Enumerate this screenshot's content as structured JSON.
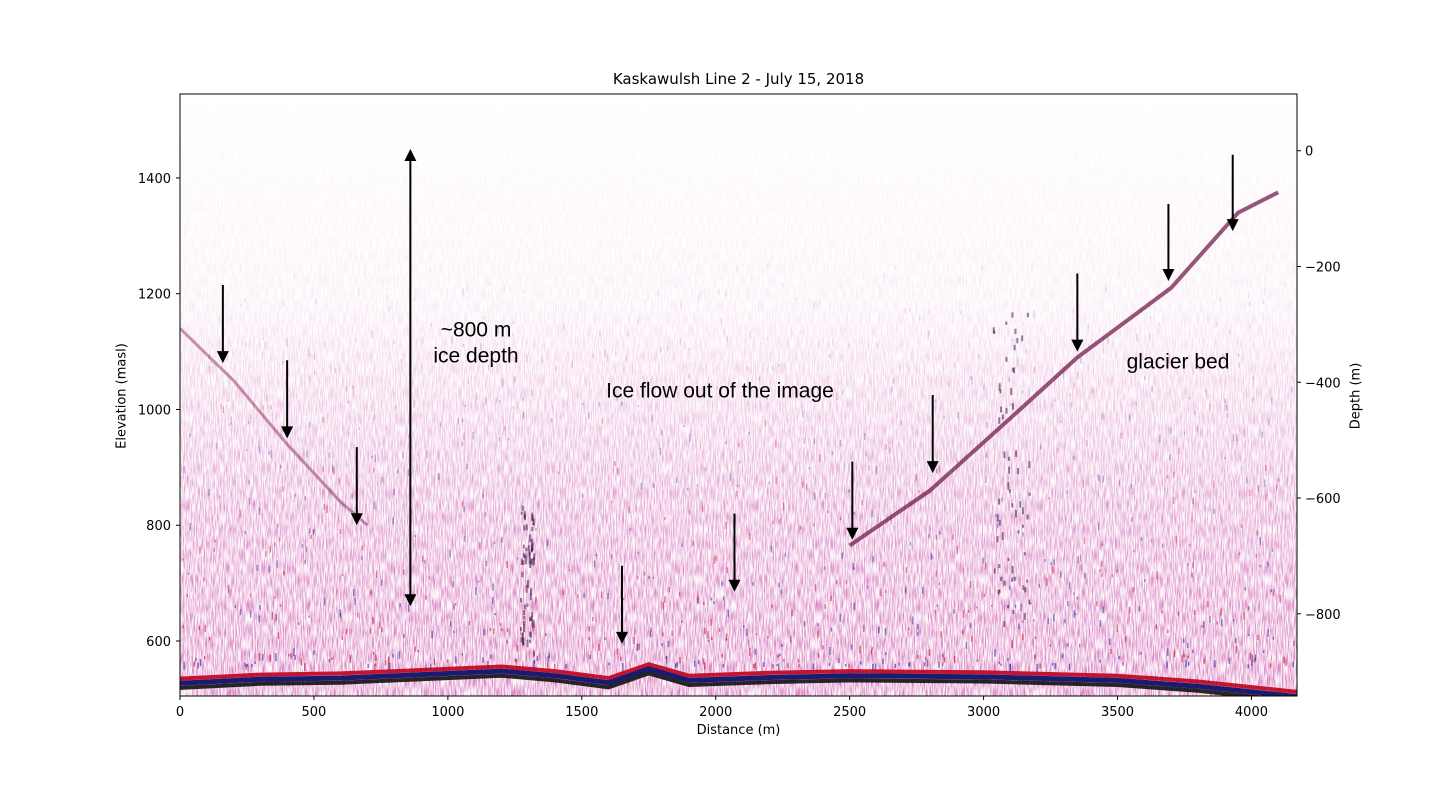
{
  "chart_data": {
    "type": "heatmap",
    "title": "Kaskawulsh Line 2 - July 15, 2018",
    "xlabel": "Distance (m)",
    "ylabel": "Elevation (masl)",
    "ylabel_right": "Depth (m)",
    "xlim": [
      0,
      4170
    ],
    "ylim": [
      505,
      1545
    ],
    "ylim_right": [
      -942,
      98
    ],
    "x_ticks": [
      0,
      500,
      1000,
      1500,
      2000,
      2500,
      3000,
      3500,
      4000
    ],
    "y_ticks": [
      600,
      800,
      1000,
      1200,
      1400
    ],
    "y_ticks_right": [
      0,
      -200,
      -400,
      -600,
      -800
    ],
    "colormap": "seismic",
    "colors": {
      "positive": "#c0001a",
      "negative": "#1a1a9e",
      "reflector": "#1a1a6e"
    },
    "bed_reflector": [
      {
        "x": 0,
        "y": 535
      },
      {
        "x": 300,
        "y": 542
      },
      {
        "x": 600,
        "y": 544
      },
      {
        "x": 900,
        "y": 550
      },
      {
        "x": 1200,
        "y": 556
      },
      {
        "x": 1400,
        "y": 548
      },
      {
        "x": 1600,
        "y": 536
      },
      {
        "x": 1750,
        "y": 560
      },
      {
        "x": 1900,
        "y": 540
      },
      {
        "x": 2200,
        "y": 545
      },
      {
        "x": 2500,
        "y": 548
      },
      {
        "x": 3000,
        "y": 546
      },
      {
        "x": 3500,
        "y": 540
      },
      {
        "x": 3800,
        "y": 530
      },
      {
        "x": 4170,
        "y": 512
      }
    ],
    "glacier_bed_trace": [
      {
        "x": 0,
        "y": 1140
      },
      {
        "x": 200,
        "y": 1050
      },
      {
        "x": 400,
        "y": 940
      },
      {
        "x": 600,
        "y": 840
      },
      {
        "x": 700,
        "y": 800
      }
    ],
    "glacier_bed_trace_right": [
      {
        "x": 2500,
        "y": 765
      },
      {
        "x": 2800,
        "y": 860
      },
      {
        "x": 3100,
        "y": 985
      },
      {
        "x": 3350,
        "y": 1090
      },
      {
        "x": 3700,
        "y": 1210
      },
      {
        "x": 3950,
        "y": 1340
      },
      {
        "x": 4100,
        "y": 1375
      }
    ],
    "arrows": [
      {
        "x": 160,
        "y_from": 1215,
        "y_to": 1080
      },
      {
        "x": 400,
        "y_from": 1085,
        "y_to": 950
      },
      {
        "x": 660,
        "y_from": 935,
        "y_to": 800
      },
      {
        "x": 1650,
        "y_from": 730,
        "y_to": 595
      },
      {
        "x": 2070,
        "y_from": 820,
        "y_to": 685
      },
      {
        "x": 2510,
        "y_from": 910,
        "y_to": 775
      },
      {
        "x": 2810,
        "y_from": 1025,
        "y_to": 890
      },
      {
        "x": 3350,
        "y_from": 1235,
        "y_to": 1100
      },
      {
        "x": 3690,
        "y_from": 1355,
        "y_to": 1222
      },
      {
        "x": 3930,
        "y_from": 1440,
        "y_to": 1308
      }
    ],
    "double_arrow": {
      "x": 860,
      "y_top": 1450,
      "y_bottom": 660
    },
    "annotations": [
      {
        "text": "~800 m",
        "x": 1040,
        "y": 1130
      },
      {
        "text": "ice depth",
        "x": 1040,
        "y": 1095
      },
      {
        "text": "Ice flow out of the image",
        "x": 2000,
        "y": 1030
      },
      {
        "text": "glacier bed",
        "x": 3720,
        "y": 1090
      }
    ]
  }
}
